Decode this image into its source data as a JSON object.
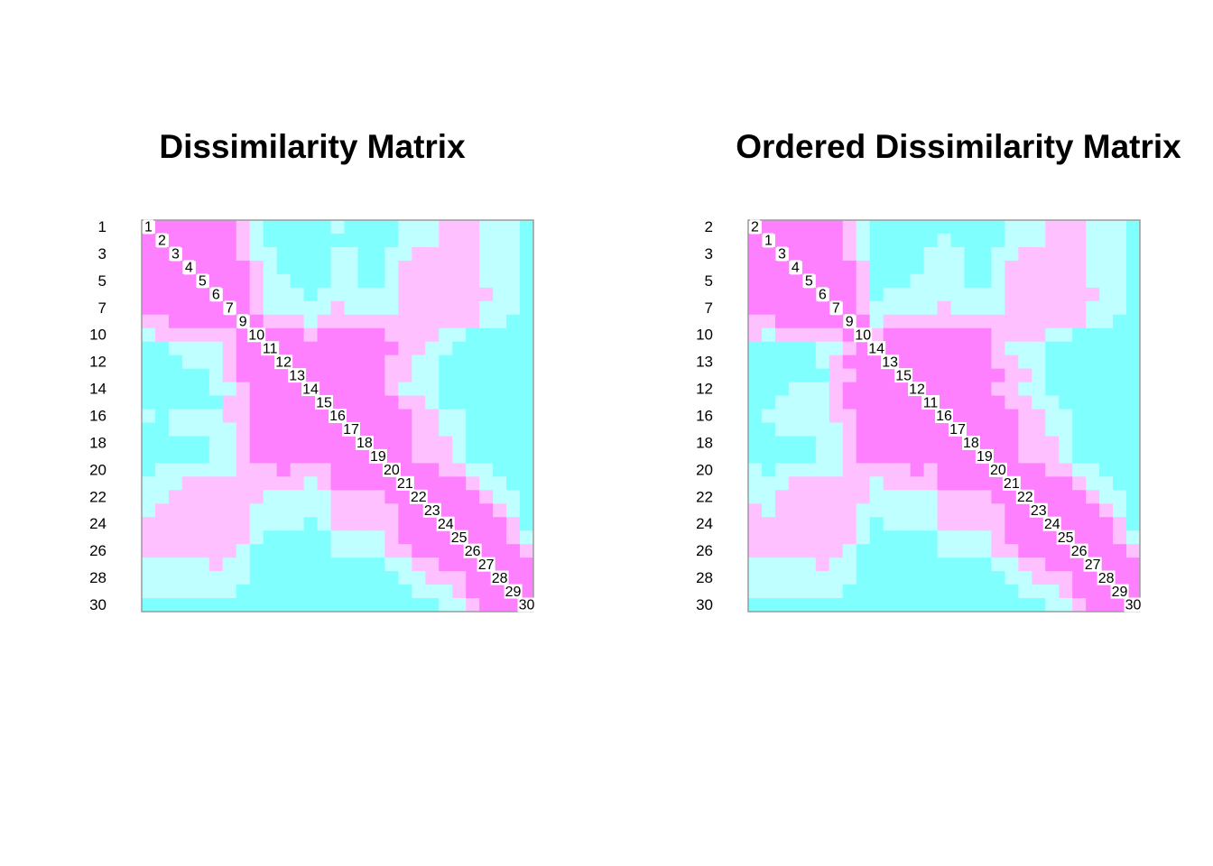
{
  "chart_data": [
    {
      "type": "heatmap",
      "title": "Dissimilarity Matrix",
      "labels": [
        1,
        2,
        3,
        4,
        5,
        6,
        7,
        9,
        10,
        11,
        12,
        13,
        14,
        15,
        16,
        17,
        18,
        19,
        20,
        21,
        22,
        23,
        24,
        25,
        26,
        27,
        28,
        29,
        30
      ],
      "colors": [
        "#ff80ff",
        "#ffc0ff",
        "#c0ffff",
        "#80ffff"
      ],
      "values": [
        [
          null,
          0,
          0,
          0,
          0,
          0,
          0,
          1,
          2,
          3,
          3,
          3,
          3,
          3,
          2,
          3,
          3,
          3,
          3,
          2,
          2,
          2,
          1,
          1,
          1,
          2,
          2,
          2,
          3
        ],
        [
          0,
          null,
          0,
          0,
          0,
          0,
          0,
          1,
          2,
          3,
          3,
          3,
          3,
          3,
          3,
          3,
          3,
          3,
          3,
          2,
          2,
          2,
          1,
          1,
          1,
          2,
          2,
          2,
          3
        ],
        [
          0,
          0,
          null,
          0,
          0,
          0,
          0,
          1,
          2,
          2,
          3,
          3,
          3,
          3,
          2,
          2,
          3,
          3,
          2,
          2,
          1,
          1,
          1,
          1,
          1,
          2,
          2,
          2,
          3
        ],
        [
          0,
          0,
          0,
          null,
          0,
          0,
          0,
          0,
          1,
          2,
          3,
          3,
          3,
          3,
          2,
          2,
          3,
          3,
          2,
          1,
          1,
          1,
          1,
          1,
          1,
          2,
          2,
          2,
          3
        ],
        [
          0,
          0,
          0,
          0,
          null,
          0,
          0,
          0,
          1,
          2,
          2,
          3,
          3,
          3,
          2,
          2,
          3,
          3,
          2,
          1,
          1,
          1,
          1,
          1,
          1,
          2,
          2,
          2,
          3
        ],
        [
          0,
          0,
          0,
          0,
          0,
          null,
          0,
          0,
          1,
          2,
          2,
          2,
          3,
          2,
          2,
          2,
          2,
          2,
          2,
          1,
          1,
          1,
          1,
          1,
          1,
          1,
          2,
          2,
          3
        ],
        [
          0,
          0,
          0,
          0,
          0,
          0,
          null,
          0,
          1,
          2,
          2,
          2,
          2,
          2,
          1,
          2,
          2,
          2,
          2,
          1,
          1,
          1,
          1,
          1,
          1,
          2,
          2,
          2,
          3
        ],
        [
          1,
          1,
          0,
          0,
          0,
          0,
          0,
          null,
          0,
          1,
          1,
          1,
          2,
          1,
          1,
          1,
          1,
          1,
          1,
          1,
          1,
          1,
          1,
          1,
          1,
          2,
          2,
          3,
          3
        ],
        [
          2,
          1,
          1,
          1,
          1,
          1,
          1,
          0,
          null,
          0,
          0,
          0,
          1,
          0,
          0,
          0,
          0,
          0,
          1,
          1,
          1,
          1,
          2,
          2,
          3,
          3,
          3,
          3,
          3
        ],
        [
          3,
          3,
          2,
          2,
          2,
          2,
          1,
          0,
          0,
          null,
          0,
          0,
          0,
          0,
          0,
          0,
          0,
          0,
          0,
          1,
          1,
          2,
          2,
          3,
          3,
          3,
          3,
          3,
          3
        ],
        [
          3,
          3,
          3,
          2,
          2,
          2,
          1,
          0,
          0,
          0,
          null,
          0,
          0,
          0,
          0,
          0,
          0,
          0,
          1,
          1,
          2,
          2,
          3,
          3,
          3,
          3,
          3,
          3,
          3
        ],
        [
          3,
          3,
          3,
          3,
          3,
          2,
          1,
          0,
          0,
          0,
          0,
          null,
          0,
          0,
          0,
          0,
          0,
          0,
          1,
          1,
          2,
          2,
          3,
          3,
          3,
          3,
          3,
          3,
          3
        ],
        [
          3,
          3,
          3,
          3,
          3,
          2,
          2,
          1,
          0,
          0,
          0,
          0,
          null,
          0,
          0,
          0,
          0,
          0,
          1,
          2,
          2,
          2,
          3,
          3,
          3,
          3,
          3,
          3,
          3
        ],
        [
          3,
          3,
          3,
          3,
          3,
          3,
          1,
          1,
          0,
          0,
          0,
          0,
          0,
          null,
          0,
          0,
          0,
          0,
          0,
          1,
          1,
          2,
          3,
          3,
          3,
          3,
          3,
          3,
          3
        ],
        [
          2,
          3,
          2,
          2,
          2,
          2,
          1,
          1,
          0,
          0,
          0,
          0,
          0,
          0,
          null,
          0,
          0,
          0,
          0,
          0,
          1,
          1,
          2,
          2,
          3,
          3,
          3,
          3,
          3
        ],
        [
          3,
          3,
          2,
          2,
          2,
          2,
          2,
          1,
          0,
          0,
          0,
          0,
          0,
          0,
          0,
          null,
          0,
          0,
          0,
          0,
          1,
          1,
          2,
          2,
          3,
          3,
          3,
          3,
          3
        ],
        [
          3,
          3,
          3,
          3,
          3,
          2,
          2,
          1,
          0,
          0,
          0,
          0,
          0,
          0,
          0,
          0,
          null,
          0,
          0,
          0,
          1,
          1,
          1,
          2,
          3,
          3,
          3,
          3,
          3
        ],
        [
          3,
          3,
          3,
          3,
          3,
          2,
          2,
          1,
          0,
          0,
          0,
          0,
          0,
          0,
          0,
          0,
          0,
          null,
          0,
          0,
          1,
          1,
          1,
          2,
          3,
          3,
          3,
          3,
          3
        ],
        [
          3,
          2,
          2,
          2,
          2,
          2,
          2,
          1,
          1,
          1,
          0,
          1,
          1,
          1,
          0,
          0,
          0,
          0,
          null,
          0,
          0,
          0,
          1,
          1,
          2,
          2,
          3,
          3,
          3
        ],
        [
          2,
          2,
          2,
          1,
          1,
          1,
          1,
          1,
          1,
          1,
          1,
          1,
          2,
          1,
          0,
          0,
          0,
          0,
          0,
          null,
          0,
          0,
          0,
          0,
          1,
          2,
          2,
          3,
          3
        ],
        [
          2,
          2,
          1,
          1,
          1,
          1,
          1,
          1,
          1,
          2,
          2,
          2,
          2,
          2,
          1,
          1,
          1,
          1,
          0,
          0,
          null,
          0,
          0,
          0,
          0,
          1,
          2,
          2,
          3
        ],
        [
          2,
          1,
          1,
          1,
          1,
          1,
          1,
          1,
          2,
          2,
          2,
          2,
          2,
          2,
          1,
          1,
          1,
          1,
          1,
          0,
          0,
          null,
          0,
          0,
          0,
          0,
          1,
          2,
          3
        ],
        [
          1,
          1,
          1,
          1,
          1,
          1,
          1,
          1,
          2,
          2,
          2,
          2,
          3,
          2,
          1,
          1,
          1,
          1,
          1,
          0,
          0,
          0,
          null,
          0,
          0,
          0,
          0,
          1,
          3
        ],
        [
          1,
          1,
          1,
          1,
          1,
          1,
          1,
          1,
          2,
          3,
          3,
          3,
          3,
          3,
          2,
          2,
          2,
          2,
          1,
          0,
          0,
          0,
          0,
          null,
          0,
          0,
          0,
          1,
          2
        ],
        [
          1,
          1,
          1,
          1,
          1,
          1,
          1,
          2,
          3,
          3,
          3,
          3,
          3,
          3,
          2,
          2,
          2,
          2,
          1,
          1,
          0,
          0,
          0,
          0,
          null,
          0,
          0,
          0,
          1
        ],
        [
          2,
          2,
          2,
          2,
          2,
          1,
          2,
          2,
          3,
          3,
          3,
          3,
          3,
          3,
          3,
          3,
          3,
          3,
          2,
          2,
          1,
          1,
          0,
          0,
          0,
          null,
          0,
          0,
          0
        ],
        [
          2,
          2,
          2,
          2,
          2,
          2,
          2,
          2,
          3,
          3,
          3,
          3,
          3,
          3,
          3,
          3,
          3,
          3,
          3,
          2,
          2,
          1,
          1,
          1,
          0,
          0,
          null,
          0,
          0
        ],
        [
          2,
          2,
          2,
          2,
          2,
          2,
          2,
          3,
          3,
          3,
          3,
          3,
          3,
          3,
          3,
          3,
          3,
          3,
          3,
          3,
          2,
          2,
          2,
          1,
          0,
          0,
          0,
          null,
          0
        ],
        [
          3,
          3,
          3,
          3,
          3,
          3,
          3,
          3,
          3,
          3,
          3,
          3,
          3,
          3,
          3,
          3,
          3,
          3,
          3,
          3,
          3,
          3,
          2,
          2,
          1,
          0,
          0,
          0,
          null
        ]
      ]
    },
    {
      "type": "heatmap",
      "title": "Ordered Dissimilarity Matrix",
      "labels": [
        2,
        1,
        3,
        4,
        5,
        6,
        7,
        9,
        10,
        14,
        13,
        15,
        12,
        11,
        16,
        17,
        18,
        19,
        20,
        21,
        22,
        23,
        24,
        25,
        26,
        27,
        28,
        29,
        30
      ],
      "colors": [
        "#ff80ff",
        "#ffc0ff",
        "#c0ffff",
        "#80ffff"
      ]
    }
  ]
}
